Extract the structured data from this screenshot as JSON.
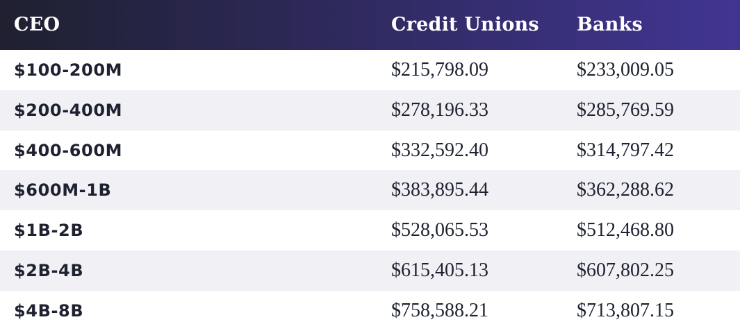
{
  "chart_data": {
    "type": "table",
    "columns": [
      "CEO",
      "Credit Unions",
      "Banks"
    ],
    "rows": [
      {
        "label": "$100-200M",
        "credit_unions": "$215,798.09",
        "banks": "$233,009.05"
      },
      {
        "label": "$200-400M",
        "credit_unions": "$278,196.33",
        "banks": "$285,769.59"
      },
      {
        "label": "$400-600M",
        "credit_unions": "$332,592.40",
        "banks": "$314,797.42"
      },
      {
        "label": "$600M-1B",
        "credit_unions": "$383,895.44",
        "banks": "$362,288.62"
      },
      {
        "label": "$1B-2B",
        "credit_unions": "$528,065.53",
        "banks": "$512,468.80"
      },
      {
        "label": "$2B-4B",
        "credit_unions": "$615,405.13",
        "banks": "$607,802.25"
      },
      {
        "label": "$4B-8B",
        "credit_unions": "$758,588.21",
        "banks": "$713,807.15"
      }
    ]
  },
  "colors": {
    "header_gradient_start": "#1f2030",
    "header_gradient_end": "#413592",
    "row_alt_background": "#f0f0f5",
    "text": "#1e2230"
  }
}
